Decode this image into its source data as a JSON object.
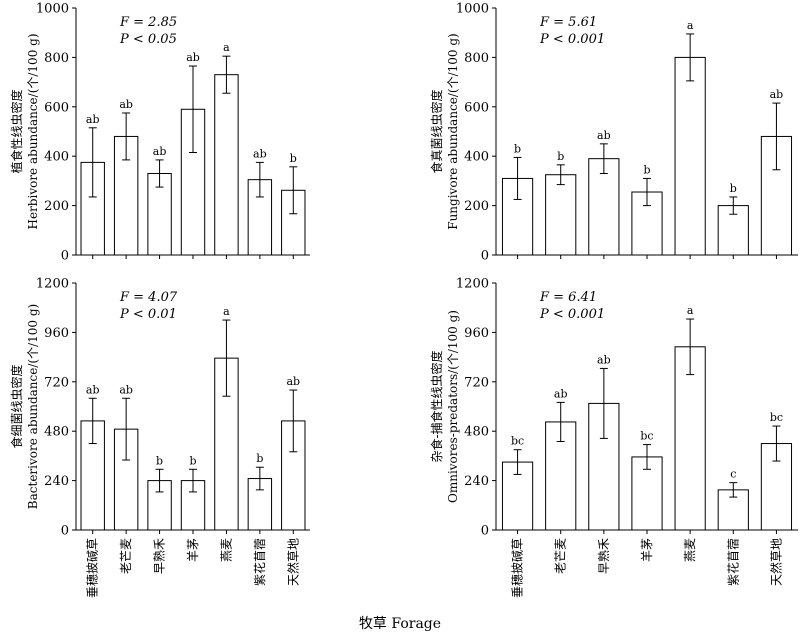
{
  "x_title": "牧草 Forage",
  "chart_data": [
    {
      "type": "bar",
      "ylabel_cn": "植食性线虫密度",
      "ylabel_en": "Herbivore abundance/(个/100 g)",
      "stat_f": "F = 2.85",
      "stat_p": "P < 0.05",
      "ylim": [
        0,
        1000
      ],
      "yticks": [
        0,
        200,
        400,
        600,
        800,
        1000
      ],
      "categories": [
        "垂穗披碱草",
        "老芒麦",
        "早熟禾",
        "羊茅",
        "燕麦",
        "紫花苜蓿",
        "天然草地"
      ],
      "values": [
        375,
        480,
        330,
        590,
        730,
        305,
        262
      ],
      "errors": [
        140,
        95,
        55,
        175,
        75,
        70,
        95
      ],
      "labels": [
        "ab",
        "ab",
        "ab",
        "ab",
        "a",
        "ab",
        "b"
      ],
      "show_xlabels": false
    },
    {
      "type": "bar",
      "ylabel_cn": "食真菌线虫密度",
      "ylabel_en": "Fungivore abundance/(个/100 g)",
      "stat_f": "F = 5.61",
      "stat_p": "P < 0.001",
      "ylim": [
        0,
        1000
      ],
      "yticks": [
        0,
        200,
        400,
        600,
        800,
        1000
      ],
      "categories": [
        "垂穗披碱草",
        "老芒麦",
        "早熟禾",
        "羊茅",
        "燕麦",
        "紫花苜蓿",
        "天然草地"
      ],
      "values": [
        310,
        325,
        390,
        255,
        800,
        200,
        480
      ],
      "errors": [
        85,
        40,
        60,
        55,
        95,
        35,
        135
      ],
      "labels": [
        "b",
        "b",
        "ab",
        "b",
        "a",
        "b",
        "ab"
      ],
      "show_xlabels": false
    },
    {
      "type": "bar",
      "ylabel_cn": "食细菌线虫密度",
      "ylabel_en": "Bacterivore abundance/(个/100 g)",
      "stat_f": "F = 4.07",
      "stat_p": "P < 0.01",
      "ylim": [
        0,
        1200
      ],
      "yticks": [
        0,
        240,
        480,
        720,
        960,
        1200
      ],
      "categories": [
        "垂穗披碱草",
        "老芒麦",
        "早熟禾",
        "羊茅",
        "燕麦",
        "紫花苜蓿",
        "天然草地"
      ],
      "values": [
        530,
        490,
        240,
        240,
        835,
        250,
        530
      ],
      "errors": [
        110,
        150,
        55,
        55,
        185,
        55,
        150
      ],
      "labels": [
        "ab",
        "ab",
        "b",
        "b",
        "a",
        "b",
        "ab"
      ],
      "show_xlabels": true
    },
    {
      "type": "bar",
      "ylabel_cn": "杂食-捕食性线虫密度",
      "ylabel_en": "Omnivores-predators/(个/100 g)",
      "stat_f": "F = 6.41",
      "stat_p": "P < 0.001",
      "ylim": [
        0,
        1200
      ],
      "yticks": [
        0,
        240,
        480,
        720,
        960,
        1200
      ],
      "categories": [
        "垂穗披碱草",
        "老芒麦",
        "早熟禾",
        "羊茅",
        "燕麦",
        "紫花苜蓿",
        "天然草地"
      ],
      "values": [
        330,
        525,
        615,
        355,
        890,
        195,
        420
      ],
      "errors": [
        60,
        95,
        170,
        60,
        135,
        35,
        85
      ],
      "labels": [
        "bc",
        "ab",
        "ab",
        "bc",
        "a",
        "c",
        "bc"
      ],
      "show_xlabels": true
    }
  ]
}
